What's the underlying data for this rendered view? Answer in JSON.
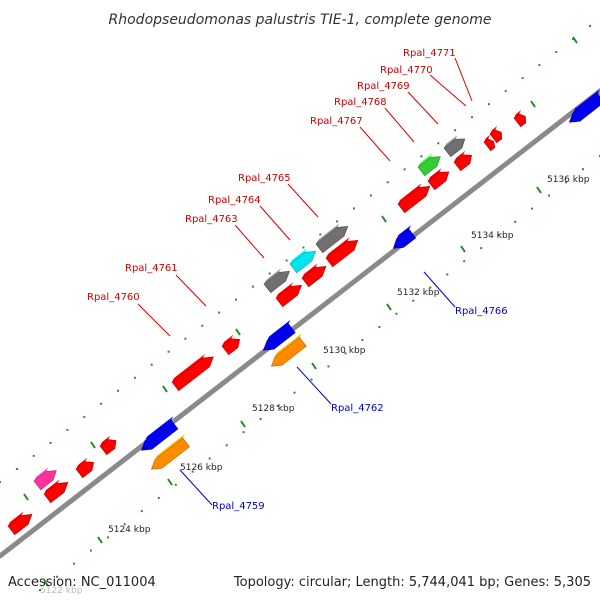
{
  "title": "Rhodopseudomonas palustris TIE-1, complete genome",
  "footer": {
    "accession": "Accession: NC_011004",
    "topology": "Topology: circular; Length: 5,744,041 bp; Genes: 5,305"
  },
  "colors": {
    "forward_label": "#cc0000",
    "reverse_label": "#0000cc",
    "backbone": "#888888",
    "tick": "#228b22",
    "red": "#ff0000",
    "blue": "#0000ee",
    "orange": "#ff8c00",
    "gray": "#707070",
    "green": "#33cc33",
    "cyan": "#00e5ee",
    "magenta": "#ff3399"
  },
  "tick_labels": [
    "5122 kbp",
    "5124 kbp",
    "5126 kbp",
    "5128 kbp",
    "5130 kbp",
    "5132 kbp",
    "5134 kbp",
    "5136 kbp"
  ],
  "gene_labels": {
    "forward": [
      "Rpal_4760",
      "Rpal_4761",
      "Rpal_4763",
      "Rpal_4764",
      "Rpal_4765",
      "Rpal_4767",
      "Rpal_4768",
      "Rpal_4769",
      "Rpal_4770",
      "Rpal_4771"
    ],
    "reverse": [
      "Rpal_4759",
      "Rpal_4762",
      "Rpal_4766"
    ]
  }
}
